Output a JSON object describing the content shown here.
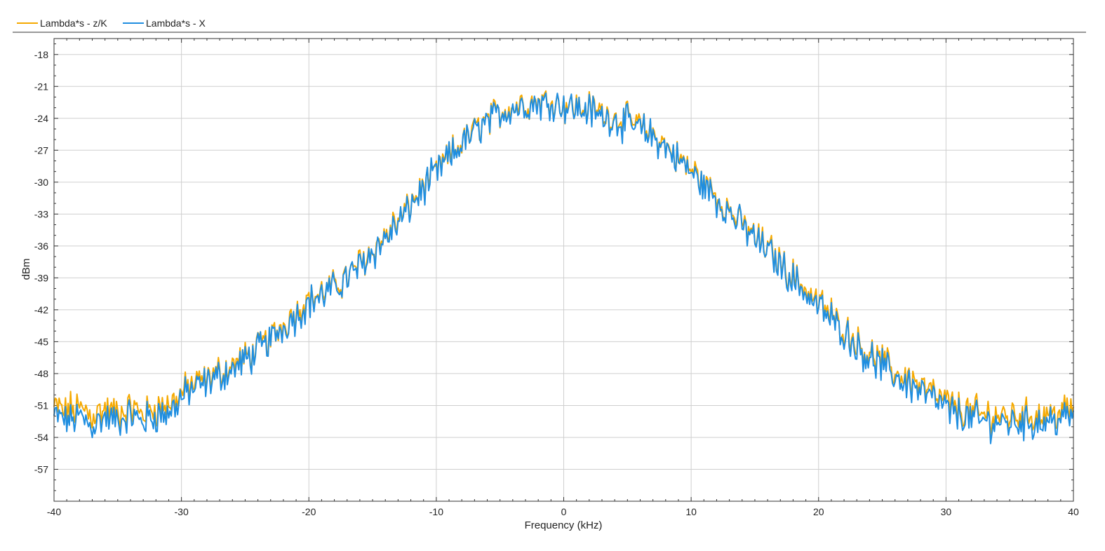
{
  "chart_data": {
    "type": "line",
    "title": "",
    "xlabel": "Frequency (kHz)",
    "ylabel": "dBm",
    "xlim": [
      -40,
      40
    ],
    "ylim": [
      -60,
      -16.5
    ],
    "xticks": [
      -40,
      -30,
      -20,
      -10,
      0,
      10,
      20,
      30,
      40
    ],
    "yticks": [
      -57,
      -54,
      -51,
      -48,
      -45,
      -42,
      -39,
      -36,
      -33,
      -30,
      -27,
      -24,
      -21,
      -18
    ],
    "grid": true,
    "legend_position": "top-left",
    "x": [
      -40,
      -39,
      -38,
      -37,
      -36,
      -35,
      -34,
      -33,
      -32,
      -31,
      -30,
      -29,
      -28,
      -27,
      -26,
      -25,
      -24,
      -23,
      -22,
      -21,
      -20,
      -19,
      -18,
      -17,
      -16,
      -15,
      -14,
      -13,
      -12,
      -11,
      -10,
      -9,
      -8,
      -7,
      -6,
      -5,
      -4,
      -3,
      -2,
      -1,
      0,
      1,
      2,
      3,
      4,
      5,
      6,
      7,
      8,
      9,
      10,
      11,
      12,
      13,
      14,
      15,
      16,
      17,
      18,
      19,
      20,
      21,
      22,
      23,
      24,
      25,
      26,
      27,
      28,
      29,
      30,
      31,
      32,
      33,
      34,
      35,
      36,
      37,
      38,
      39,
      40
    ],
    "series": [
      {
        "name": "Lambda*s - z/K",
        "color": "#f5a900",
        "values": [
          -51.2,
          -51.5,
          -51.3,
          -51.8,
          -51.4,
          -51.7,
          -51.2,
          -51.6,
          -51.3,
          -51.0,
          -49.8,
          -49.0,
          -48.4,
          -47.9,
          -47.3,
          -46.5,
          -45.6,
          -44.6,
          -43.3,
          -42.2,
          -41.0,
          -40.5,
          -39.8,
          -38.9,
          -37.7,
          -36.4,
          -35.1,
          -33.7,
          -32.0,
          -30.4,
          -29.0,
          -27.6,
          -26.3,
          -25.1,
          -24.2,
          -23.4,
          -22.9,
          -22.6,
          -22.4,
          -22.3,
          -22.6,
          -22.9,
          -23.1,
          -23.5,
          -23.9,
          -24.3,
          -24.8,
          -25.5,
          -26.5,
          -27.8,
          -28.9,
          -30.2,
          -31.4,
          -32.6,
          -33.9,
          -35.1,
          -36.3,
          -37.5,
          -38.9,
          -40.1,
          -41.4,
          -42.6,
          -43.8,
          -45.0,
          -46.1,
          -47.0,
          -47.8,
          -48.5,
          -49.2,
          -50.0,
          -50.8,
          -51.4,
          -51.7,
          -51.9,
          -52.0,
          -52.0,
          -51.9,
          -52.0,
          -51.8,
          -51.6,
          -51.4
        ]
      },
      {
        "name": "Lambda*s - X",
        "color": "#1f8ee0",
        "values": [
          -52.0,
          -52.4,
          -52.2,
          -52.8,
          -52.3,
          -52.5,
          -52.0,
          -52.4,
          -52.0,
          -51.6,
          -50.3,
          -49.5,
          -48.8,
          -48.3,
          -47.6,
          -46.8,
          -45.9,
          -44.9,
          -43.6,
          -42.5,
          -41.3,
          -40.7,
          -40.0,
          -39.1,
          -37.9,
          -36.6,
          -35.3,
          -33.9,
          -32.2,
          -30.6,
          -29.2,
          -27.8,
          -26.5,
          -25.3,
          -24.4,
          -23.6,
          -23.1,
          -22.8,
          -22.6,
          -22.5,
          -22.8,
          -23.1,
          -23.3,
          -23.7,
          -24.1,
          -24.5,
          -25.0,
          -25.7,
          -26.7,
          -28.0,
          -29.1,
          -30.4,
          -31.6,
          -32.8,
          -34.1,
          -35.3,
          -36.5,
          -37.8,
          -39.2,
          -40.4,
          -41.7,
          -42.9,
          -44.1,
          -45.4,
          -46.5,
          -47.4,
          -48.2,
          -48.9,
          -49.6,
          -50.5,
          -51.3,
          -51.9,
          -52.3,
          -52.5,
          -52.6,
          -52.6,
          -52.5,
          -52.6,
          -52.4,
          -52.2,
          -52.0
        ]
      }
    ]
  }
}
